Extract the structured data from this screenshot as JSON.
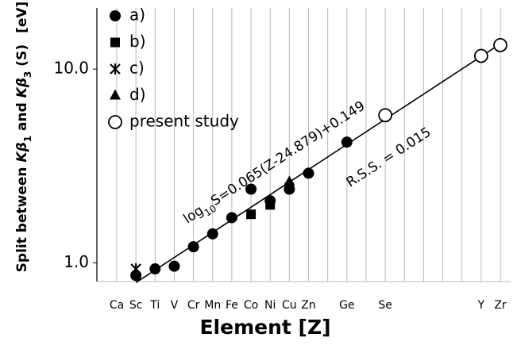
{
  "chart_data": {
    "type": "scatter",
    "xlabel": "Element [Z]",
    "ylabel": [
      "Split between ",
      "Kβ",
      "1",
      " and ",
      "Kβ",
      "3",
      " (S)"
    ],
    "y_unit": "[eV]",
    "categories": [
      "Ca",
      "Sc",
      "Ti",
      "V",
      "Cr",
      "Mn",
      "Fe",
      "Co",
      "Ni",
      "Cu",
      "Zn",
      null,
      "Ge",
      null,
      "Se",
      null,
      null,
      null,
      null,
      "Y",
      "Zr"
    ],
    "log_y": true,
    "ylim": [
      0.8,
      20.7
    ],
    "yticks": [
      {
        "value": 1,
        "label": "1.0"
      },
      {
        "value": 10,
        "label": "10.0"
      }
    ],
    "grid": true,
    "series": [
      {
        "name": "a)",
        "marker": "circle",
        "color": "#000000",
        "values": [
          null,
          0.86,
          0.93,
          0.96,
          1.21,
          1.41,
          1.71,
          2.4,
          2.09,
          2.4,
          2.9,
          null,
          4.2,
          null,
          null,
          null,
          null,
          null,
          null,
          null,
          null
        ]
      },
      {
        "name": "b)",
        "marker": "square",
        "color": "#000000",
        "values": [
          null,
          null,
          null,
          null,
          null,
          null,
          null,
          1.78,
          1.99,
          2.45,
          null,
          null,
          null,
          null,
          null,
          null,
          null,
          null,
          null,
          null,
          null
        ]
      },
      {
        "name": "c)",
        "marker": "star",
        "color": "#000000",
        "values": [
          null,
          0.93,
          null,
          null,
          null,
          null,
          null,
          null,
          null,
          null,
          null,
          null,
          null,
          null,
          null,
          null,
          null,
          null,
          null,
          null,
          null
        ]
      },
      {
        "name": "d)",
        "marker": "triangle",
        "color": "#000000",
        "values": [
          null,
          null,
          null,
          null,
          null,
          null,
          null,
          null,
          null,
          2.62,
          null,
          null,
          null,
          null,
          null,
          null,
          null,
          null,
          null,
          null,
          null
        ]
      },
      {
        "name": "present study",
        "marker": "open-circle",
        "color": "#000000",
        "values": [
          null,
          null,
          null,
          null,
          null,
          null,
          null,
          null,
          null,
          null,
          null,
          null,
          null,
          null,
          5.78,
          null,
          null,
          null,
          null,
          11.7,
          13.3
        ]
      }
    ],
    "fit": {
      "x": [
        "Sc",
        "Zr"
      ],
      "values": [
        0.79,
        13.5
      ],
      "color": "#000000"
    },
    "fit_label": [
      "log",
      "10",
      "S=0.065(Z-24.879)+0.149"
    ],
    "rss_label": "R.S.S. = 0.015"
  }
}
